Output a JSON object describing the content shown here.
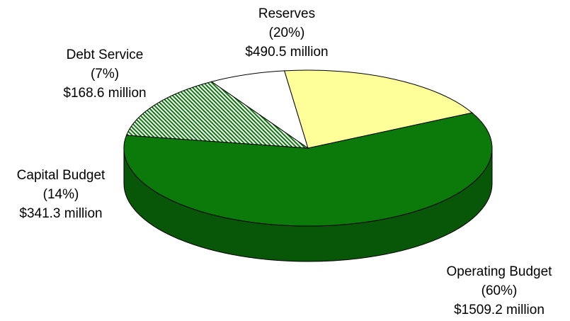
{
  "chart_data": {
    "type": "pie",
    "style": "3d-exploded",
    "slices": [
      {
        "name": "Operating Budget",
        "percent_label": "(60%)",
        "amount_label": "$1509.2 million",
        "value": 1509.2,
        "color": "#0b7a0b",
        "pattern": "solid"
      },
      {
        "name": "Capital Budget",
        "percent_label": "(14%)",
        "amount_label": "$341.3 million",
        "value": 341.3,
        "color": "#0b7a0b",
        "pattern": "hatched"
      },
      {
        "name": "Debt Service",
        "percent_label": "(7%)",
        "amount_label": "$168.6 million",
        "value": 168.6,
        "color": "#ffffff",
        "pattern": "solid"
      },
      {
        "name": "Reserves",
        "percent_label": "(20%)",
        "amount_label": "$490.5 million",
        "value": 490.5,
        "color": "#ffff99",
        "pattern": "solid"
      }
    ]
  }
}
